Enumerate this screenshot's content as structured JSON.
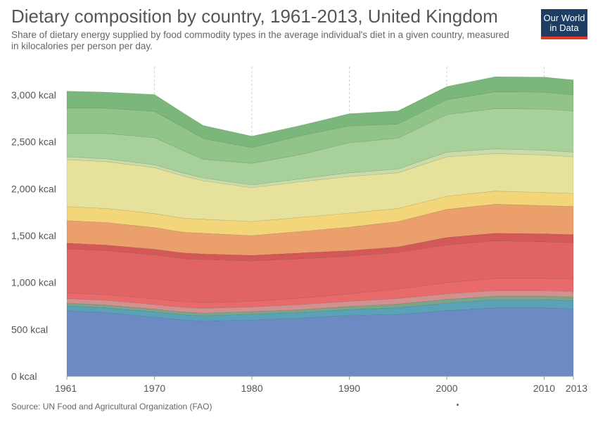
{
  "title": "Dietary composition by country, 1961-2013, United Kingdom",
  "subtitle": "Share of dietary energy supplied by food commodity types in the average individual's diet in a given country, measured in kilocalories per person per day.",
  "logo": {
    "line1": "Our World",
    "line2": "in Data",
    "bg_color": "#1d3d63",
    "accent_color": "#e03b2a"
  },
  "source": "Source: UN Food and Agricultural Organization (FAO)",
  "chart_data": {
    "type": "area",
    "stacked": true,
    "xlim": [
      1961,
      2013
    ],
    "ylim": [
      0,
      3300
    ],
    "x_ticks": [
      1961,
      1970,
      1980,
      1990,
      2000,
      2010,
      2013
    ],
    "x_tick_labels": [
      "1961",
      "1970",
      "1980",
      "1990",
      "2000",
      "2010",
      "2013"
    ],
    "y_ticks": [
      0,
      500,
      1000,
      1500,
      2000,
      2500,
      3000
    ],
    "y_tick_labels": [
      "0 kcal",
      "500 kcal",
      "1,000 kcal",
      "1,500 kcal",
      "2,000 kcal",
      "2,500 kcal",
      "3,000 kcal"
    ],
    "grid": "vertical dashed at x ticks",
    "legend": "none",
    "x": [
      1961,
      1965,
      1970,
      1973,
      1975,
      1980,
      1985,
      1990,
      1995,
      2000,
      2005,
      2010,
      2013
    ],
    "series": [
      {
        "color": "#6c8bc2",
        "values": [
          700,
          680,
          630,
          600,
          590,
          600,
          620,
          650,
          660,
          700,
          730,
          730,
          720
        ]
      },
      {
        "color": "#5aa2b8",
        "values": [
          50,
          50,
          55,
          55,
          55,
          60,
          60,
          60,
          70,
          80,
          85,
          85,
          85
        ]
      },
      {
        "color": "#7ba489",
        "values": [
          30,
          30,
          30,
          30,
          30,
          30,
          30,
          35,
          40,
          40,
          40,
          40,
          40
        ]
      },
      {
        "color": "#d2918f",
        "values": [
          50,
          50,
          50,
          50,
          50,
          50,
          55,
          55,
          60,
          60,
          60,
          60,
          60
        ]
      },
      {
        "color": "#e96a6a",
        "values": [
          60,
          60,
          60,
          60,
          60,
          60,
          70,
          80,
          100,
          120,
          130,
          130,
          130
        ]
      },
      {
        "color": "#e06464",
        "values": [
          470,
          470,
          470,
          460,
          460,
          430,
          420,
          400,
          390,
          400,
          400,
          390,
          390
        ]
      },
      {
        "color": "#d55858",
        "values": [
          60,
          60,
          60,
          60,
          60,
          60,
          60,
          60,
          60,
          80,
          80,
          85,
          85
        ]
      },
      {
        "color": "#eba06c",
        "values": [
          240,
          240,
          230,
          220,
          220,
          210,
          230,
          250,
          270,
          300,
          310,
          300,
          300
        ]
      },
      {
        "color": "#f2d679",
        "values": [
          150,
          150,
          150,
          150,
          150,
          150,
          150,
          150,
          140,
          140,
          140,
          140,
          140
        ]
      },
      {
        "color": "#e6e29c",
        "values": [
          500,
          500,
          490,
          450,
          410,
          360,
          380,
          390,
          380,
          420,
          400,
          400,
          390
        ]
      },
      {
        "color": "#c8dca7",
        "values": [
          30,
          30,
          30,
          30,
          30,
          30,
          30,
          40,
          40,
          50,
          50,
          50,
          50
        ]
      },
      {
        "color": "#a8d09b",
        "values": [
          250,
          270,
          290,
          240,
          200,
          230,
          260,
          320,
          330,
          400,
          430,
          440,
          440
        ]
      },
      {
        "color": "#90c488",
        "values": [
          270,
          270,
          280,
          250,
          220,
          170,
          200,
          180,
          150,
          160,
          180,
          180,
          170
        ]
      },
      {
        "color": "#7bb77a",
        "values": [
          180,
          170,
          180,
          150,
          140,
          120,
          110,
          130,
          140,
          140,
          160,
          160,
          160
        ]
      }
    ]
  }
}
